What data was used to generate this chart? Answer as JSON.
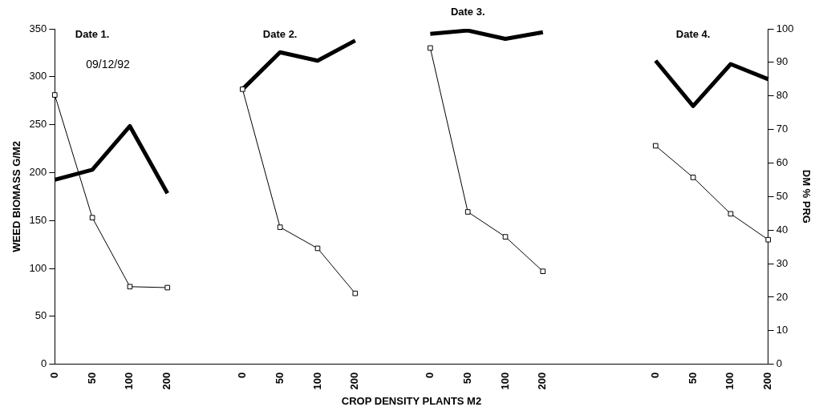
{
  "chart_data": {
    "type": "line",
    "xlabel": "CROP DENSITY PLANTS M2",
    "ylabel": "WEED BIOMASS G/M2",
    "y2label": "DM % PRG",
    "categories": [
      "0",
      "50",
      "100",
      "200",
      null,
      "0",
      "50",
      "100",
      "200",
      null,
      "0",
      "50",
      "100",
      "200",
      null,
      null,
      "0",
      "50",
      "100",
      "200"
    ],
    "series": [
      {
        "color": "#000000",
        "marker": "square",
        "values": [
          281,
          153,
          81,
          80,
          null,
          287,
          143,
          121,
          74,
          null,
          330,
          159,
          133,
          97,
          null,
          null,
          228,
          195,
          157,
          130
        ]
      },
      {
        "color": "#000000",
        "marker": "none",
        "axis": "y2",
        "values": [
          55,
          58,
          71,
          51,
          null,
          82,
          93,
          90.5,
          96.5,
          null,
          98.5,
          99.5,
          97,
          99,
          null,
          null,
          90.5,
          77,
          89.5,
          85
        ]
      }
    ],
    "ylim": [
      0,
      350
    ],
    "yticks": [
      0,
      50,
      100,
      150,
      200,
      250,
      300,
      350
    ],
    "y2lim": [
      0,
      100
    ],
    "y2ticks": [
      0,
      10,
      20,
      30,
      40,
      50,
      60,
      70,
      80,
      90,
      100
    ],
    "annotations": [
      "Date 1.",
      "09/12/92",
      "Date 2.",
      "Date 3.",
      "Date 4."
    ],
    "grid": false,
    "legend": false
  }
}
